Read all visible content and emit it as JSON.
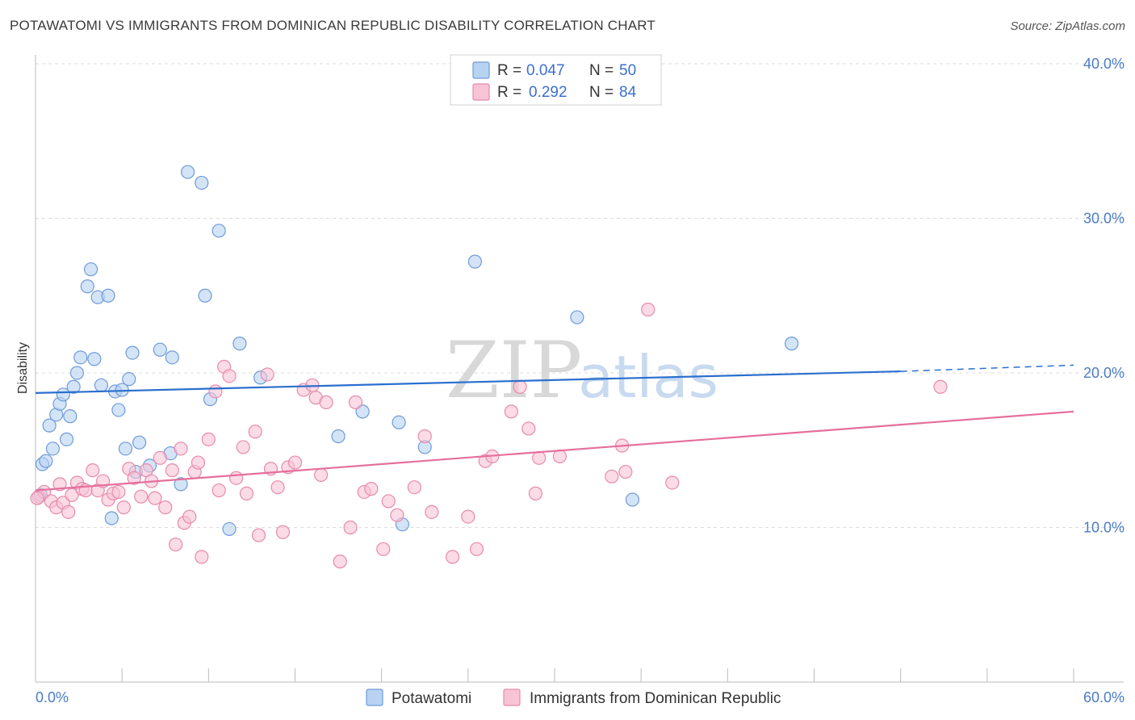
{
  "title": "POTAWATOMI VS IMMIGRANTS FROM DOMINICAN REPUBLIC DISABILITY CORRELATION CHART",
  "source": "Source: ZipAtlas.com",
  "watermark": {
    "part1": "ZIP",
    "part2": "atlas"
  },
  "colors": {
    "blue_fill": "#b8d2f2",
    "blue_stroke": "#6f9bd8",
    "blue_line": "#2a6fce",
    "pink_fill": "#f7c3d5",
    "pink_stroke": "#e88aac",
    "pink_line": "#e56f9c",
    "grid": "#dcdcdc",
    "tick_text": "#4a7cc7"
  },
  "legend": {
    "rows": [
      {
        "r_label": "R =",
        "r_value": "0.047",
        "n_label": "N =",
        "n_value": "50"
      },
      {
        "r_label": "R =",
        "r_value": "0.292",
        "n_label": "N =",
        "n_value": "84"
      }
    ]
  },
  "chart_data": {
    "type": "scatter",
    "title": "POTAWATOMI VS IMMIGRANTS FROM DOMINICAN REPUBLIC DISABILITY CORRELATION CHART",
    "xlabel": "",
    "ylabel": "Disability",
    "xlim": [
      0,
      60
    ],
    "ylim": [
      0,
      40
    ],
    "x_tick_labels": [
      "0.0%",
      "60.0%"
    ],
    "y_ticks": [
      10,
      20,
      30,
      40
    ],
    "y_tick_labels": [
      "10.0%",
      "20.0%",
      "30.0%",
      "40.0%"
    ],
    "grid": true,
    "legend_position": "top-center",
    "series": [
      {
        "name": "Potawatomi",
        "trend": {
          "x": [
            0,
            50
          ],
          "y": [
            18.7,
            20.1
          ],
          "dashed_to": [
            60,
            20.5
          ]
        },
        "points": [
          [
            0.3,
            12.1
          ],
          [
            0.4,
            14.1
          ],
          [
            0.6,
            14.3
          ],
          [
            0.8,
            16.6
          ],
          [
            1.0,
            15.1
          ],
          [
            1.2,
            17.3
          ],
          [
            1.4,
            18.0
          ],
          [
            1.6,
            18.6
          ],
          [
            1.8,
            15.7
          ],
          [
            2.0,
            17.2
          ],
          [
            2.2,
            19.1
          ],
          [
            2.4,
            20.0
          ],
          [
            2.6,
            21.0
          ],
          [
            3.0,
            25.6
          ],
          [
            3.2,
            26.7
          ],
          [
            3.4,
            20.9
          ],
          [
            3.6,
            24.9
          ],
          [
            3.8,
            19.2
          ],
          [
            4.2,
            25.0
          ],
          [
            4.4,
            10.6
          ],
          [
            4.6,
            18.8
          ],
          [
            4.8,
            17.6
          ],
          [
            5.0,
            18.9
          ],
          [
            5.2,
            15.1
          ],
          [
            5.4,
            19.6
          ],
          [
            5.6,
            21.3
          ],
          [
            5.8,
            13.6
          ],
          [
            6.0,
            15.5
          ],
          [
            6.6,
            14.0
          ],
          [
            7.2,
            21.5
          ],
          [
            7.8,
            14.8
          ],
          [
            7.9,
            21.0
          ],
          [
            8.4,
            12.8
          ],
          [
            8.8,
            33.0
          ],
          [
            9.6,
            32.3
          ],
          [
            9.8,
            25.0
          ],
          [
            10.1,
            18.3
          ],
          [
            10.6,
            29.2
          ],
          [
            11.2,
            9.9
          ],
          [
            11.8,
            21.9
          ],
          [
            13.0,
            19.7
          ],
          [
            17.5,
            15.9
          ],
          [
            18.9,
            17.5
          ],
          [
            21.0,
            16.8
          ],
          [
            21.2,
            10.2
          ],
          [
            22.5,
            15.2
          ],
          [
            25.4,
            27.2
          ],
          [
            31.3,
            23.6
          ],
          [
            34.5,
            11.8
          ],
          [
            43.7,
            21.9
          ]
        ]
      },
      {
        "name": "Immigrants from Dominican Republic",
        "trend": {
          "x": [
            0,
            60
          ],
          "y": [
            12.4,
            17.5
          ]
        },
        "points": [
          [
            0.2,
            12.0
          ],
          [
            0.5,
            12.3
          ],
          [
            0.9,
            11.7
          ],
          [
            1.2,
            11.3
          ],
          [
            1.4,
            12.8
          ],
          [
            1.6,
            11.6
          ],
          [
            1.9,
            11.0
          ],
          [
            2.1,
            12.1
          ],
          [
            2.4,
            12.9
          ],
          [
            2.7,
            12.5
          ],
          [
            2.9,
            12.4
          ],
          [
            3.3,
            13.7
          ],
          [
            3.6,
            12.4
          ],
          [
            3.9,
            13.0
          ],
          [
            4.2,
            11.8
          ],
          [
            4.5,
            12.2
          ],
          [
            4.8,
            12.3
          ],
          [
            5.1,
            11.3
          ],
          [
            5.4,
            13.8
          ],
          [
            5.7,
            13.2
          ],
          [
            6.1,
            12.0
          ],
          [
            6.4,
            13.7
          ],
          [
            6.7,
            13.0
          ],
          [
            6.9,
            11.9
          ],
          [
            7.2,
            14.5
          ],
          [
            7.5,
            11.3
          ],
          [
            7.9,
            13.7
          ],
          [
            8.1,
            8.9
          ],
          [
            8.4,
            15.1
          ],
          [
            8.6,
            10.3
          ],
          [
            8.9,
            10.7
          ],
          [
            9.2,
            13.6
          ],
          [
            9.4,
            14.2
          ],
          [
            9.6,
            8.1
          ],
          [
            10.0,
            15.7
          ],
          [
            10.4,
            18.8
          ],
          [
            10.6,
            12.4
          ],
          [
            10.9,
            20.4
          ],
          [
            11.2,
            19.8
          ],
          [
            11.6,
            13.2
          ],
          [
            12.0,
            15.2
          ],
          [
            12.2,
            12.2
          ],
          [
            12.7,
            16.2
          ],
          [
            12.9,
            9.5
          ],
          [
            13.4,
            19.9
          ],
          [
            13.6,
            13.8
          ],
          [
            14.0,
            12.6
          ],
          [
            14.3,
            9.7
          ],
          [
            14.6,
            13.9
          ],
          [
            15.0,
            14.2
          ],
          [
            15.5,
            18.9
          ],
          [
            16.0,
            19.2
          ],
          [
            16.2,
            18.4
          ],
          [
            16.5,
            13.4
          ],
          [
            16.8,
            18.1
          ],
          [
            17.6,
            7.8
          ],
          [
            18.2,
            10.0
          ],
          [
            18.5,
            18.1
          ],
          [
            19.0,
            12.3
          ],
          [
            19.4,
            12.5
          ],
          [
            20.1,
            8.6
          ],
          [
            20.4,
            11.7
          ],
          [
            20.9,
            10.8
          ],
          [
            21.9,
            12.6
          ],
          [
            22.5,
            15.9
          ],
          [
            22.9,
            11.0
          ],
          [
            24.1,
            8.1
          ],
          [
            25.0,
            10.7
          ],
          [
            25.5,
            8.6
          ],
          [
            26.0,
            14.3
          ],
          [
            26.4,
            14.6
          ],
          [
            27.5,
            17.5
          ],
          [
            28.0,
            19.1
          ],
          [
            28.5,
            16.4
          ],
          [
            28.9,
            12.2
          ],
          [
            29.1,
            14.5
          ],
          [
            30.3,
            14.6
          ],
          [
            33.3,
            13.3
          ],
          [
            33.9,
            15.3
          ],
          [
            34.1,
            13.6
          ],
          [
            35.4,
            24.1
          ],
          [
            36.8,
            12.9
          ],
          [
            52.3,
            19.1
          ],
          [
            0.1,
            11.9
          ]
        ]
      }
    ]
  },
  "bottom_legend": {
    "items": [
      {
        "label": "Potawatomi"
      },
      {
        "label": "Immigrants from Dominican Republic"
      }
    ]
  }
}
